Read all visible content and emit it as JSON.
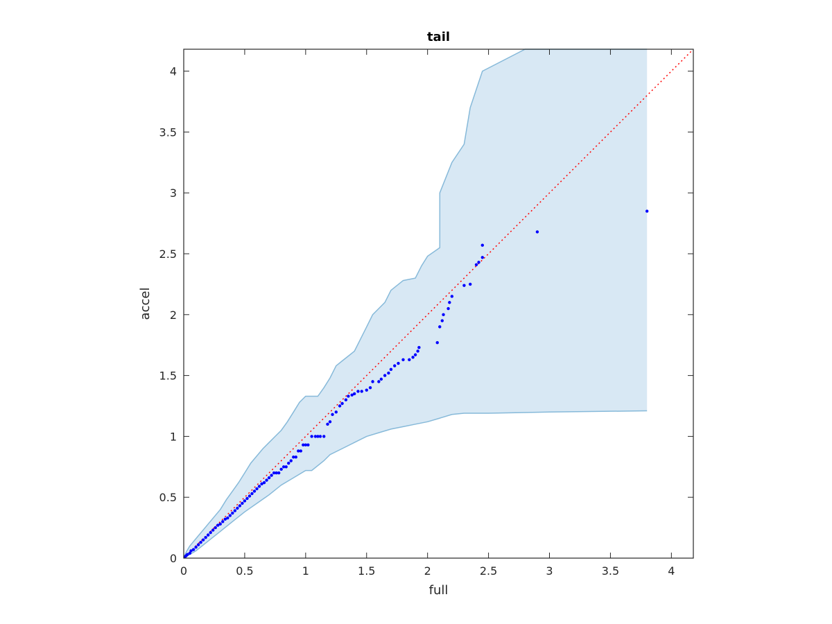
{
  "chart_data": {
    "type": "scatter",
    "title": "tail",
    "xlabel": "full",
    "ylabel": "accel",
    "xlim": [
      0,
      4.18
    ],
    "ylim": [
      0,
      4.18
    ],
    "grid": false,
    "x_ticks": [
      "0",
      "0.5",
      "1",
      "1.5",
      "2",
      "2.5",
      "3",
      "3.5",
      "4"
    ],
    "y_ticks": [
      "0",
      "0.5",
      "1",
      "1.5",
      "2",
      "2.5",
      "3",
      "3.5",
      "4"
    ],
    "x_tick_values": [
      0,
      0.5,
      1,
      1.5,
      2,
      2.5,
      3,
      3.5,
      4
    ],
    "y_tick_values": [
      0,
      0.5,
      1,
      1.5,
      2,
      2.5,
      3,
      3.5,
      4
    ],
    "reference_line": {
      "from": [
        0,
        0
      ],
      "to": [
        4.18,
        4.18
      ],
      "style": "dotted",
      "color": "#ff0000"
    },
    "band": {
      "color": "#d8e8f4",
      "edge_color": "#86b9d9",
      "upper": [
        [
          0,
          0
        ],
        [
          0.02,
          0.05
        ],
        [
          0.05,
          0.1
        ],
        [
          0.1,
          0.16
        ],
        [
          0.15,
          0.22
        ],
        [
          0.2,
          0.28
        ],
        [
          0.25,
          0.34
        ],
        [
          0.3,
          0.4
        ],
        [
          0.35,
          0.48
        ],
        [
          0.4,
          0.55
        ],
        [
          0.45,
          0.62
        ],
        [
          0.5,
          0.7
        ],
        [
          0.55,
          0.78
        ],
        [
          0.6,
          0.84
        ],
        [
          0.65,
          0.9
        ],
        [
          0.7,
          0.95
        ],
        [
          0.75,
          1.0
        ],
        [
          0.8,
          1.05
        ],
        [
          0.85,
          1.12
        ],
        [
          0.9,
          1.2
        ],
        [
          0.95,
          1.28
        ],
        [
          1.0,
          1.33
        ],
        [
          1.05,
          1.33
        ],
        [
          1.1,
          1.33
        ],
        [
          1.15,
          1.4
        ],
        [
          1.2,
          1.48
        ],
        [
          1.25,
          1.58
        ],
        [
          1.3,
          1.62
        ],
        [
          1.4,
          1.7
        ],
        [
          1.45,
          1.8
        ],
        [
          1.5,
          1.9
        ],
        [
          1.55,
          2.0
        ],
        [
          1.6,
          2.05
        ],
        [
          1.65,
          2.1
        ],
        [
          1.7,
          2.2
        ],
        [
          1.8,
          2.28
        ],
        [
          1.9,
          2.3
        ],
        [
          1.95,
          2.4
        ],
        [
          2.0,
          2.48
        ],
        [
          2.1,
          2.55
        ],
        [
          2.1,
          3.0
        ],
        [
          2.2,
          3.25
        ],
        [
          2.3,
          3.4
        ],
        [
          2.35,
          3.7
        ],
        [
          2.45,
          4.0
        ],
        [
          2.8,
          4.18
        ],
        [
          3.8,
          4.18
        ]
      ],
      "lower": [
        [
          0,
          0
        ],
        [
          0.05,
          0.03
        ],
        [
          0.1,
          0.06
        ],
        [
          0.2,
          0.14
        ],
        [
          0.3,
          0.22
        ],
        [
          0.4,
          0.3
        ],
        [
          0.5,
          0.38
        ],
        [
          0.6,
          0.45
        ],
        [
          0.7,
          0.52
        ],
        [
          0.8,
          0.6
        ],
        [
          0.9,
          0.66
        ],
        [
          1.0,
          0.72
        ],
        [
          1.05,
          0.72
        ],
        [
          1.15,
          0.8
        ],
        [
          1.2,
          0.85
        ],
        [
          1.3,
          0.9
        ],
        [
          1.4,
          0.95
        ],
        [
          1.5,
          1.0
        ],
        [
          1.6,
          1.03
        ],
        [
          1.7,
          1.06
        ],
        [
          1.8,
          1.08
        ],
        [
          1.9,
          1.1
        ],
        [
          2.0,
          1.12
        ],
        [
          2.1,
          1.15
        ],
        [
          2.2,
          1.18
        ],
        [
          2.3,
          1.19
        ],
        [
          2.4,
          1.19
        ],
        [
          2.5,
          1.19
        ],
        [
          3.0,
          1.2
        ],
        [
          3.8,
          1.21
        ]
      ]
    },
    "series": [
      {
        "color": "#0000ff",
        "points": [
          [
            0.01,
            0.01
          ],
          [
            0.02,
            0.02
          ],
          [
            0.03,
            0.03
          ],
          [
            0.05,
            0.04
          ],
          [
            0.06,
            0.06
          ],
          [
            0.08,
            0.07
          ],
          [
            0.1,
            0.09
          ],
          [
            0.12,
            0.11
          ],
          [
            0.14,
            0.13
          ],
          [
            0.16,
            0.15
          ],
          [
            0.18,
            0.17
          ],
          [
            0.2,
            0.19
          ],
          [
            0.22,
            0.21
          ],
          [
            0.24,
            0.23
          ],
          [
            0.26,
            0.25
          ],
          [
            0.28,
            0.27
          ],
          [
            0.3,
            0.28
          ],
          [
            0.32,
            0.3
          ],
          [
            0.34,
            0.32
          ],
          [
            0.36,
            0.33
          ],
          [
            0.38,
            0.35
          ],
          [
            0.4,
            0.37
          ],
          [
            0.42,
            0.39
          ],
          [
            0.44,
            0.41
          ],
          [
            0.46,
            0.43
          ],
          [
            0.48,
            0.45
          ],
          [
            0.5,
            0.47
          ],
          [
            0.52,
            0.49
          ],
          [
            0.54,
            0.51
          ],
          [
            0.56,
            0.53
          ],
          [
            0.58,
            0.55
          ],
          [
            0.6,
            0.57
          ],
          [
            0.62,
            0.59
          ],
          [
            0.64,
            0.61
          ],
          [
            0.66,
            0.62
          ],
          [
            0.68,
            0.64
          ],
          [
            0.7,
            0.66
          ],
          [
            0.72,
            0.68
          ],
          [
            0.74,
            0.7
          ],
          [
            0.76,
            0.7
          ],
          [
            0.78,
            0.7
          ],
          [
            0.8,
            0.73
          ],
          [
            0.82,
            0.75
          ],
          [
            0.84,
            0.75
          ],
          [
            0.86,
            0.78
          ],
          [
            0.88,
            0.8
          ],
          [
            0.9,
            0.83
          ],
          [
            0.92,
            0.83
          ],
          [
            0.94,
            0.88
          ],
          [
            0.96,
            0.88
          ],
          [
            0.98,
            0.93
          ],
          [
            1.0,
            0.93
          ],
          [
            1.02,
            0.93
          ],
          [
            1.05,
            1.0
          ],
          [
            1.08,
            1.0
          ],
          [
            1.1,
            1.0
          ],
          [
            1.12,
            1.0
          ],
          [
            1.15,
            1.0
          ],
          [
            1.18,
            1.1
          ],
          [
            1.2,
            1.12
          ],
          [
            1.22,
            1.18
          ],
          [
            1.25,
            1.2
          ],
          [
            1.28,
            1.25
          ],
          [
            1.3,
            1.27
          ],
          [
            1.33,
            1.3
          ],
          [
            1.35,
            1.33
          ],
          [
            1.38,
            1.34
          ],
          [
            1.4,
            1.35
          ],
          [
            1.43,
            1.37
          ],
          [
            1.46,
            1.37
          ],
          [
            1.5,
            1.38
          ],
          [
            1.53,
            1.4
          ],
          [
            1.55,
            1.45
          ],
          [
            1.6,
            1.45
          ],
          [
            1.62,
            1.47
          ],
          [
            1.65,
            1.5
          ],
          [
            1.68,
            1.52
          ],
          [
            1.7,
            1.55
          ],
          [
            1.73,
            1.58
          ],
          [
            1.76,
            1.6
          ],
          [
            1.8,
            1.63
          ],
          [
            1.85,
            1.63
          ],
          [
            1.88,
            1.65
          ],
          [
            1.9,
            1.67
          ],
          [
            1.92,
            1.7
          ],
          [
            1.93,
            1.73
          ],
          [
            2.08,
            1.77
          ],
          [
            2.1,
            1.9
          ],
          [
            2.12,
            1.95
          ],
          [
            2.13,
            2.0
          ],
          [
            2.17,
            2.05
          ],
          [
            2.18,
            2.1
          ],
          [
            2.2,
            2.15
          ],
          [
            2.3,
            2.24
          ],
          [
            2.35,
            2.25
          ],
          [
            2.4,
            2.41
          ],
          [
            2.42,
            2.43
          ],
          [
            2.45,
            2.47
          ],
          [
            2.45,
            2.57
          ],
          [
            2.9,
            2.68
          ],
          [
            3.8,
            2.85
          ]
        ]
      }
    ]
  }
}
